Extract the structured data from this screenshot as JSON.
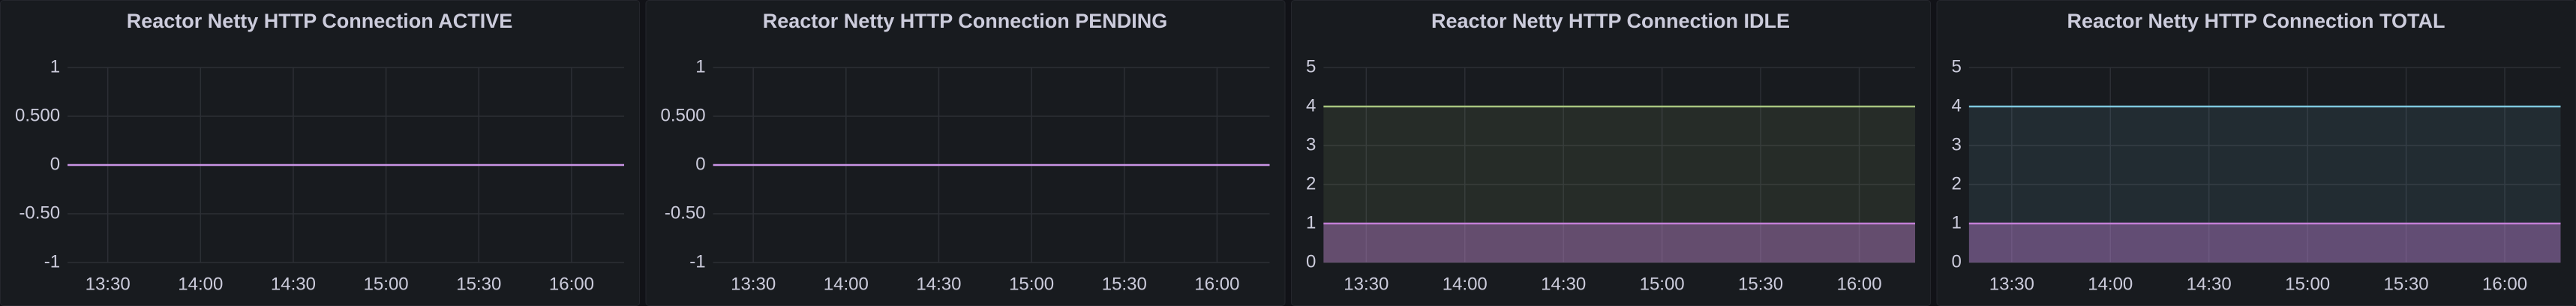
{
  "chart_data": [
    {
      "type": "line",
      "title": "Reactor Netty HTTP Connection ACTIVE",
      "x": [
        797,
        977
      ],
      "xlim": [
        797,
        977
      ],
      "xticks": [
        {
          "value": 810,
          "label": "13:30"
        },
        {
          "value": 840,
          "label": "14:00"
        },
        {
          "value": 870,
          "label": "14:30"
        },
        {
          "value": 900,
          "label": "15:00"
        },
        {
          "value": 930,
          "label": "15:30"
        },
        {
          "value": 960,
          "label": "16:00"
        }
      ],
      "ylim": [
        -1,
        1
      ],
      "yticks": [
        1,
        {
          "value": 0.5,
          "label": "0.500"
        },
        0,
        {
          "value": -0.5,
          "label": "-0.50"
        },
        -1
      ],
      "grid": true,
      "series": [
        {
          "color": "#ca95e5",
          "values": [
            0,
            0
          ]
        }
      ]
    },
    {
      "type": "line",
      "title": "Reactor Netty HTTP Connection PENDING",
      "x": [
        797,
        977
      ],
      "xlim": [
        797,
        977
      ],
      "xticks": [
        {
          "value": 810,
          "label": "13:30"
        },
        {
          "value": 840,
          "label": "14:00"
        },
        {
          "value": 870,
          "label": "14:30"
        },
        {
          "value": 900,
          "label": "15:00"
        },
        {
          "value": 930,
          "label": "15:30"
        },
        {
          "value": 960,
          "label": "16:00"
        }
      ],
      "ylim": [
        -1,
        1
      ],
      "yticks": [
        1,
        {
          "value": 0.5,
          "label": "0.500"
        },
        0,
        {
          "value": -0.5,
          "label": "-0.50"
        },
        -1
      ],
      "grid": true,
      "series": [
        {
          "color": "#ca95e5",
          "values": [
            0,
            0
          ]
        }
      ]
    },
    {
      "type": "area",
      "title": "Reactor Netty HTTP Connection IDLE",
      "x": [
        797,
        977
      ],
      "xlim": [
        797,
        977
      ],
      "xticks": [
        {
          "value": 810,
          "label": "13:30"
        },
        {
          "value": 840,
          "label": "14:00"
        },
        {
          "value": 870,
          "label": "14:30"
        },
        {
          "value": 900,
          "label": "15:00"
        },
        {
          "value": 930,
          "label": "15:30"
        },
        {
          "value": 960,
          "label": "16:00"
        }
      ],
      "ylim": [
        0,
        5
      ],
      "yticks": [
        0,
        1,
        2,
        3,
        4,
        5
      ],
      "grid": true,
      "series": [
        {
          "color": "#a7c57f",
          "values": [
            4,
            4
          ]
        },
        {
          "color": "#c27fd6",
          "values": [
            1,
            1
          ]
        }
      ]
    },
    {
      "type": "area",
      "title": "Reactor Netty HTTP Connection TOTAL",
      "x": [
        797,
        977
      ],
      "xlim": [
        797,
        977
      ],
      "xticks": [
        {
          "value": 810,
          "label": "13:30"
        },
        {
          "value": 840,
          "label": "14:00"
        },
        {
          "value": 870,
          "label": "14:30"
        },
        {
          "value": 900,
          "label": "15:00"
        },
        {
          "value": 930,
          "label": "15:30"
        },
        {
          "value": 960,
          "label": "16:00"
        }
      ],
      "ylim": [
        0,
        5
      ],
      "yticks": [
        0,
        1,
        2,
        3,
        4,
        5
      ],
      "grid": true,
      "series": [
        {
          "color": "#7ec8de",
          "values": [
            4,
            4
          ]
        },
        {
          "color": "#c27fd6",
          "values": [
            1,
            1
          ]
        }
      ]
    }
  ]
}
